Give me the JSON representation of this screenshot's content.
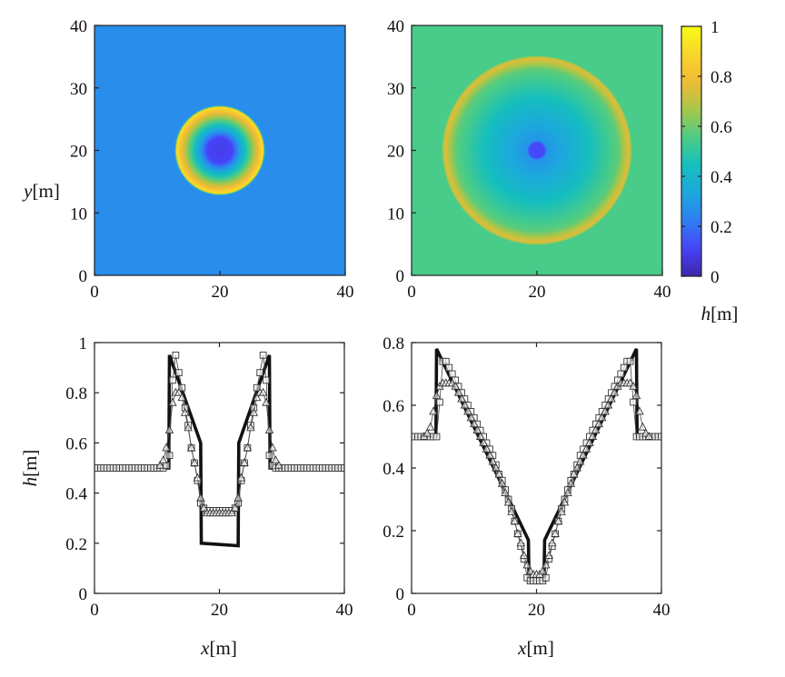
{
  "colormap_stops": [
    "#3e26a8",
    "#4743f8",
    "#2f7ff4",
    "#1ca8dd",
    "#15bfbe",
    "#4ccc86",
    "#a6c74a",
    "#f2b935",
    "#f8d52c",
    "#f9fb14"
  ],
  "chart_data": [
    {
      "id": "tl",
      "type": "heatmap",
      "xlim": [
        0,
        40
      ],
      "ylim": [
        0,
        40
      ],
      "xticks": [
        0,
        20,
        40
      ],
      "yticks": [
        0,
        10,
        20,
        30,
        40
      ],
      "xlabel": "",
      "ylabel": "y[m]",
      "clim": [
        0,
        1
      ],
      "field": {
        "kind": "radial",
        "center": [
          20,
          20
        ],
        "background": 0.26,
        "profile": [
          [
            0,
            0.09
          ],
          [
            2.0,
            0.11
          ],
          [
            3.0,
            0.28
          ],
          [
            4.5,
            0.52
          ],
          [
            6.3,
            0.82
          ],
          [
            6.9,
            0.93
          ],
          [
            7.2,
            0.26
          ]
        ]
      }
    },
    {
      "id": "tr",
      "type": "heatmap",
      "xlim": [
        0,
        40
      ],
      "ylim": [
        0,
        40
      ],
      "xticks": [
        0,
        20,
        40
      ],
      "yticks": [
        0,
        10,
        20,
        30,
        40
      ],
      "xlabel": "",
      "ylabel": "",
      "clim": [
        0,
        1
      ],
      "field": {
        "kind": "radial",
        "center": [
          20,
          20
        ],
        "background": 0.55,
        "profile": [
          [
            0,
            0.12
          ],
          [
            1.2,
            0.12
          ],
          [
            1.6,
            0.28
          ],
          [
            6,
            0.38
          ],
          [
            10,
            0.49
          ],
          [
            13,
            0.58
          ],
          [
            14.6,
            0.75
          ],
          [
            15.0,
            0.68
          ],
          [
            15.1,
            0.55
          ]
        ]
      }
    },
    {
      "id": "bl",
      "type": "line",
      "xlim": [
        0,
        40
      ],
      "ylim": [
        0,
        1
      ],
      "xticks": [
        0,
        20,
        40
      ],
      "yticks": [
        0,
        0.2,
        0.4,
        0.6,
        0.8,
        1
      ],
      "ytick_labels": [
        "0",
        "0.2",
        "0.4",
        "0.6",
        "0.8",
        "1"
      ],
      "xlabel": "x[m]",
      "ylabel": "h[m]",
      "series": [
        {
          "style": "solid",
          "x": [
            0,
            11.9,
            12.0,
            17.0,
            17.1,
            23.0,
            23.1,
            28.0,
            28.1,
            40
          ],
          "y": [
            0.5,
            0.5,
            0.95,
            0.6,
            0.2,
            0.19,
            0.6,
            0.95,
            0.5,
            0.5
          ]
        },
        {
          "style": "square",
          "x": [
            0,
            0.5,
            1,
            1.5,
            2,
            2.5,
            3,
            3.5,
            4,
            4.5,
            5,
            5.5,
            6,
            6.5,
            7,
            7.5,
            8,
            8.5,
            9,
            9.5,
            10,
            10.5,
            11,
            11.5,
            12,
            12.5,
            13,
            13.5,
            14,
            14.5,
            15,
            15.5,
            16,
            16.5,
            17,
            17.5,
            18,
            18.5,
            19,
            19.5,
            20,
            20.5,
            21,
            21.5,
            22,
            22.5,
            23,
            23.5,
            24,
            24.5,
            25,
            25.5,
            26,
            26.5,
            27,
            27.5,
            28,
            28.5,
            29,
            29.5,
            30,
            30.5,
            31,
            31.5,
            32,
            32.5,
            33,
            33.5,
            34,
            34.5,
            35,
            35.5,
            36,
            36.5,
            37,
            37.5,
            38,
            38.5,
            39,
            39.5,
            40
          ],
          "y": [
            0.5,
            0.5,
            0.5,
            0.5,
            0.5,
            0.5,
            0.5,
            0.5,
            0.5,
            0.5,
            0.5,
            0.5,
            0.5,
            0.5,
            0.5,
            0.5,
            0.5,
            0.5,
            0.5,
            0.5,
            0.5,
            0.5,
            0.5,
            0.51,
            0.55,
            0.85,
            0.95,
            0.88,
            0.82,
            0.74,
            0.67,
            0.58,
            0.52,
            0.45,
            0.36,
            0.34,
            0.33,
            0.33,
            0.33,
            0.33,
            0.33,
            0.33,
            0.33,
            0.33,
            0.33,
            0.34,
            0.36,
            0.45,
            0.52,
            0.58,
            0.67,
            0.74,
            0.82,
            0.88,
            0.95,
            0.85,
            0.55,
            0.51,
            0.5,
            0.5,
            0.5,
            0.5,
            0.5,
            0.5,
            0.5,
            0.5,
            0.5,
            0.5,
            0.5,
            0.5,
            0.5,
            0.5,
            0.5,
            0.5,
            0.5,
            0.5,
            0.5,
            0.5,
            0.5,
            0.5,
            0.5
          ]
        },
        {
          "style": "triangle",
          "x": [
            10.5,
            11,
            11.5,
            12,
            12.5,
            13,
            13.5,
            14,
            14.5,
            15,
            15.5,
            16,
            16.5,
            17,
            17.5,
            18,
            18.5,
            19,
            19.5,
            20,
            20.5,
            21,
            21.5,
            22,
            22.5,
            23,
            23.5,
            24,
            24.5,
            25,
            25.5,
            26,
            26.5,
            27,
            27.5,
            28,
            28.5,
            29,
            29.5
          ],
          "y": [
            0.51,
            0.53,
            0.58,
            0.65,
            0.76,
            0.8,
            0.8,
            0.78,
            0.72,
            0.66,
            0.58,
            0.52,
            0.46,
            0.38,
            0.34,
            0.32,
            0.32,
            0.32,
            0.32,
            0.32,
            0.32,
            0.32,
            0.32,
            0.32,
            0.34,
            0.38,
            0.46,
            0.52,
            0.58,
            0.66,
            0.72,
            0.78,
            0.8,
            0.8,
            0.76,
            0.65,
            0.58,
            0.53,
            0.51
          ]
        }
      ]
    },
    {
      "id": "br",
      "type": "line",
      "xlim": [
        0,
        40
      ],
      "ylim": [
        0,
        0.8
      ],
      "xticks": [
        0,
        20,
        40
      ],
      "yticks": [
        0,
        0.2,
        0.4,
        0.6,
        0.8
      ],
      "ytick_labels": [
        "0",
        "0.2",
        "0.4",
        "0.6",
        "0.8"
      ],
      "xlabel": "x[m]",
      "ylabel": "",
      "series": [
        {
          "style": "solid",
          "x": [
            0,
            3.9,
            4.0,
            18.7,
            18.8,
            21.2,
            21.3,
            36.0,
            36.1,
            40
          ],
          "y": [
            0.5,
            0.5,
            0.78,
            0.17,
            0.04,
            0.04,
            0.17,
            0.78,
            0.5,
            0.5
          ]
        },
        {
          "style": "square",
          "x": [
            0,
            0.5,
            1,
            1.5,
            2,
            2.5,
            3,
            3.5,
            4,
            4.5,
            5,
            5.5,
            6,
            6.5,
            7,
            7.5,
            8,
            8.5,
            9,
            9.5,
            10,
            10.5,
            11,
            11.5,
            12,
            12.5,
            13,
            13.5,
            14,
            14.5,
            15,
            15.5,
            16,
            16.5,
            17,
            17.5,
            18,
            18.5,
            19,
            19.5,
            20,
            20.5,
            21,
            21.5,
            22,
            22.5,
            23,
            23.5,
            24,
            24.5,
            25,
            25.5,
            26,
            26.5,
            27,
            27.5,
            28,
            28.5,
            29,
            29.5,
            30,
            30.5,
            31,
            31.5,
            32,
            32.5,
            33,
            33.5,
            34,
            34.5,
            35,
            35.5,
            36,
            36.5,
            37,
            37.5,
            38,
            38.5,
            39,
            39.5,
            40
          ],
          "y": [
            0.5,
            0.5,
            0.5,
            0.5,
            0.5,
            0.5,
            0.5,
            0.5,
            0.5,
            0.61,
            0.74,
            0.74,
            0.72,
            0.7,
            0.68,
            0.66,
            0.64,
            0.62,
            0.6,
            0.58,
            0.56,
            0.54,
            0.52,
            0.5,
            0.48,
            0.46,
            0.44,
            0.41,
            0.38,
            0.36,
            0.33,
            0.3,
            0.27,
            0.23,
            0.19,
            0.15,
            0.11,
            0.05,
            0.04,
            0.04,
            0.04,
            0.04,
            0.04,
            0.05,
            0.11,
            0.15,
            0.19,
            0.23,
            0.27,
            0.3,
            0.33,
            0.36,
            0.38,
            0.41,
            0.44,
            0.46,
            0.48,
            0.5,
            0.52,
            0.54,
            0.56,
            0.58,
            0.6,
            0.62,
            0.64,
            0.66,
            0.68,
            0.7,
            0.72,
            0.74,
            0.74,
            0.61,
            0.5,
            0.5,
            0.5,
            0.5,
            0.5,
            0.5,
            0.5,
            0.5,
            0.5
          ]
        },
        {
          "style": "triangle",
          "x": [
            2,
            2.5,
            3,
            3.5,
            4,
            4.5,
            5,
            5.5,
            6,
            6.5,
            7,
            7.5,
            8,
            8.5,
            9,
            9.5,
            10,
            10.5,
            11,
            11.5,
            12,
            12.5,
            13,
            13.5,
            14,
            14.5,
            15,
            15.5,
            16,
            16.5,
            17,
            17.5,
            18,
            18.5,
            19,
            19.5,
            20,
            20.5,
            21,
            21.5,
            22,
            22.5,
            23,
            23.5,
            24,
            24.5,
            25,
            25.5,
            26,
            26.5,
            27,
            27.5,
            28,
            28.5,
            29,
            29.5,
            30,
            30.5,
            31,
            31.5,
            32,
            32.5,
            33,
            33.5,
            34,
            34.5,
            35,
            35.5,
            36,
            36.5,
            37,
            37.5,
            38
          ],
          "y": [
            0.5,
            0.51,
            0.53,
            0.58,
            0.63,
            0.66,
            0.67,
            0.67,
            0.67,
            0.67,
            0.66,
            0.64,
            0.62,
            0.6,
            0.58,
            0.56,
            0.54,
            0.52,
            0.5,
            0.48,
            0.46,
            0.44,
            0.42,
            0.4,
            0.38,
            0.35,
            0.32,
            0.29,
            0.26,
            0.23,
            0.19,
            0.16,
            0.12,
            0.09,
            0.07,
            0.06,
            0.06,
            0.06,
            0.07,
            0.09,
            0.12,
            0.16,
            0.19,
            0.23,
            0.26,
            0.29,
            0.32,
            0.35,
            0.38,
            0.4,
            0.42,
            0.44,
            0.46,
            0.48,
            0.5,
            0.52,
            0.54,
            0.56,
            0.58,
            0.6,
            0.62,
            0.64,
            0.66,
            0.67,
            0.67,
            0.67,
            0.67,
            0.66,
            0.63,
            0.58,
            0.53,
            0.51,
            0.5
          ]
        }
      ]
    }
  ],
  "colorbar": {
    "clim": [
      0,
      1
    ],
    "ticks": [
      0,
      0.2,
      0.4,
      0.6,
      0.8,
      1
    ],
    "tick_labels": [
      "0",
      "0.2",
      "0.4",
      "0.6",
      "0.8",
      "1"
    ],
    "label": "h[m]"
  }
}
